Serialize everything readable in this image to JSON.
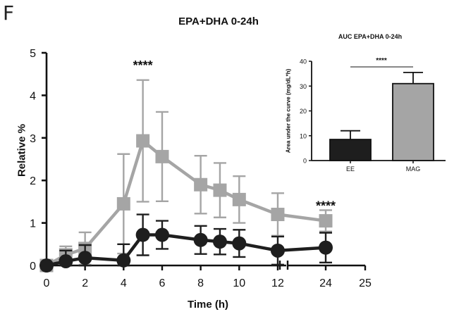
{
  "panel_letter": "F",
  "chart_data": [
    {
      "type": "line",
      "title": "EPA+DHA 0-24h",
      "xlabel": "Time (h)",
      "ylabel": "Relative %",
      "ylim": [
        0,
        5
      ],
      "yticks": [
        "0",
        "1",
        "2",
        "3",
        "4",
        "5"
      ],
      "xticks": [
        "0",
        "2",
        "4",
        "6",
        "8",
        "10",
        "12",
        "24",
        "25"
      ],
      "x_axis_break": "between 12 and 24",
      "grid": false,
      "series": [
        {
          "color": "#a5a5a5",
          "marker": "square",
          "x": [
            0,
            1,
            2,
            4,
            5,
            6,
            8,
            9,
            10,
            12,
            24
          ],
          "y": [
            0.0,
            0.25,
            0.4,
            1.45,
            2.93,
            2.56,
            1.9,
            1.77,
            1.55,
            1.2,
            1.05
          ],
          "error": [
            0.1,
            0.2,
            0.38,
            1.17,
            1.43,
            1.05,
            0.68,
            0.64,
            0.55,
            0.5,
            0.25
          ]
        },
        {
          "color": "#1e1e1e",
          "marker": "circle",
          "x": [
            0,
            1,
            2,
            4,
            5,
            6,
            8,
            9,
            10,
            12,
            24
          ],
          "y": [
            0.0,
            0.1,
            0.18,
            0.12,
            0.72,
            0.72,
            0.6,
            0.56,
            0.52,
            0.35,
            0.42
          ],
          "error": [
            0.05,
            0.25,
            0.3,
            0.38,
            0.48,
            0.33,
            0.33,
            0.3,
            0.32,
            0.33,
            0.35
          ]
        }
      ],
      "annotations": [
        {
          "text": "****",
          "x": 5,
          "y": 4.6
        },
        {
          "text": "****",
          "x": 24,
          "y": 1.3
        }
      ]
    },
    {
      "type": "bar",
      "title": "AUC EPA+DHA 0-24h",
      "ylabel": "Area under the curve (mg/dL*h)",
      "ylim": [
        0,
        40
      ],
      "yticks": [
        "0",
        "10",
        "20",
        "30",
        "40"
      ],
      "categories": [
        "EE",
        "MAG"
      ],
      "values": [
        8.5,
        31
      ],
      "error": [
        3.5,
        4.5
      ],
      "colors": [
        "#1e1e1e",
        "#a5a5a5"
      ],
      "annotation": "****"
    }
  ]
}
